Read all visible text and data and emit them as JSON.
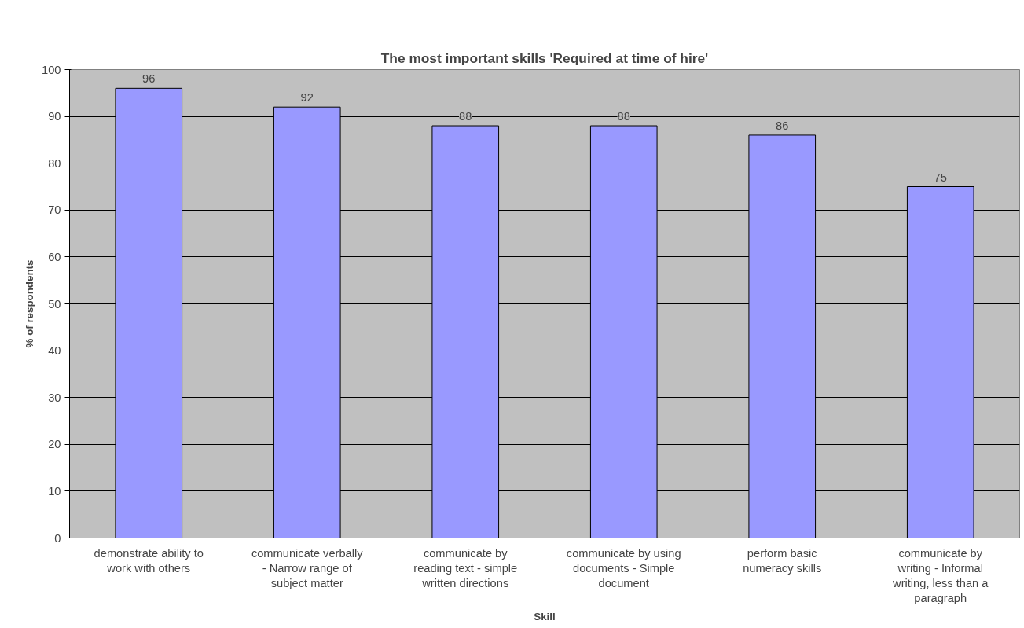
{
  "chart_data": {
    "type": "bar",
    "title": "The most important skills 'Required at time of hire'",
    "xlabel": "Skill",
    "ylabel": "% of respondents",
    "categories": [
      "demonstrate ability to\nwork with others",
      "communicate verbally\n- Narrow range of\nsubject matter",
      "communicate by\nreading text - simple\nwritten directions",
      "communicate by using\ndocuments - Simple\ndocument",
      "perform basic\nnumeracy skills",
      "communicate by\nwriting - Informal\nwriting, less than a\nparagraph"
    ],
    "values": [
      96,
      92,
      88,
      88,
      86,
      75
    ],
    "color": "#9999ff",
    "ylim": [
      0,
      100
    ],
    "yticks": [
      0,
      10,
      20,
      30,
      40,
      50,
      60,
      70,
      80,
      90,
      100
    ],
    "grid": "y",
    "data_labels": true
  }
}
